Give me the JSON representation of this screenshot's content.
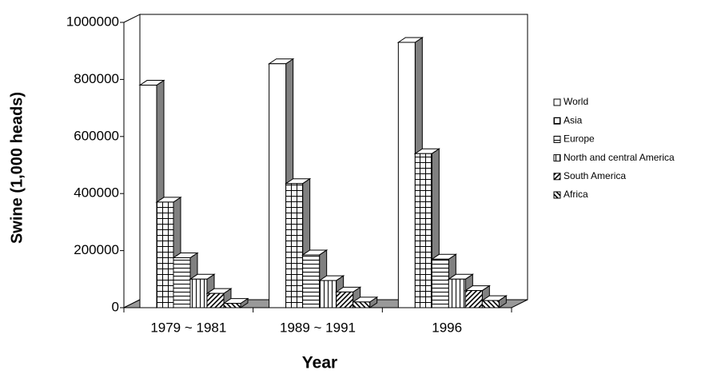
{
  "chart_data": {
    "type": "bar3d",
    "x_label": "Year",
    "y_label": "Swine (1,000 heads)",
    "categories": [
      "1979 ~ 1981",
      "1989 ~ 1991",
      "1996"
    ],
    "series": [
      {
        "name": "World",
        "color": "#ffffff",
        "pattern": "none",
        "values": [
          780000,
          855000,
          930000
        ]
      },
      {
        "name": "Asia",
        "color": "#ffffff",
        "pattern": "grid",
        "values": [
          370000,
          435000,
          540000
        ]
      },
      {
        "name": "Europe",
        "color": "#ffffff",
        "pattern": "horizontal",
        "values": [
          175000,
          185000,
          170000
        ]
      },
      {
        "name": "North and central America",
        "color": "#ffffff",
        "pattern": "vertical",
        "values": [
          100000,
          95000,
          100000
        ]
      },
      {
        "name": "South America",
        "color": "#ffffff",
        "pattern": "diagonal-up",
        "values": [
          50000,
          55000,
          60000
        ]
      },
      {
        "name": "Africa",
        "color": "#ffffff",
        "pattern": "diagonal-down",
        "values": [
          15000,
          20000,
          25000
        ]
      }
    ],
    "ylim": [
      0,
      1000000
    ],
    "yticks": [
      0,
      200000,
      400000,
      600000,
      800000,
      1000000
    ],
    "grid": false,
    "legend": "right"
  }
}
